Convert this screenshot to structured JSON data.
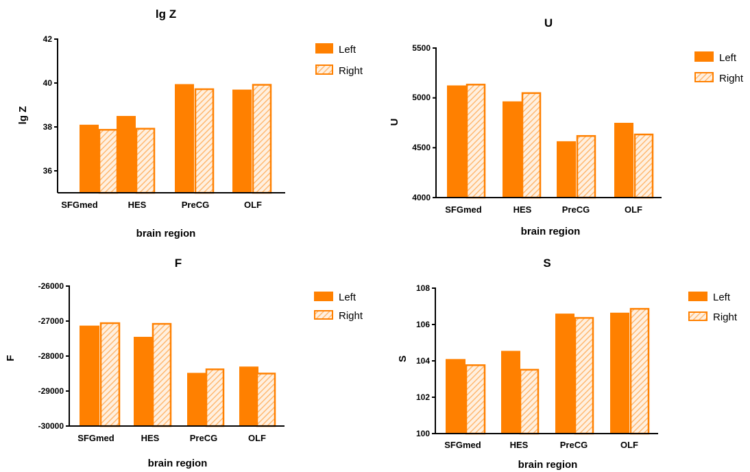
{
  "colors": {
    "left": "#FF8000",
    "right_fill": "#FFF0E0",
    "right_hatch": "#FFB870",
    "right_edge": "#FF8000",
    "axis": "#000000"
  },
  "chart_data": [
    {
      "type": "bar",
      "title": "lg Z",
      "xlabel": "brain region",
      "ylabel": "lg Z",
      "categories": [
        "SFGmed",
        "HES",
        "PreCG",
        "OLF"
      ],
      "ylim": [
        35,
        42
      ],
      "yticks": [
        "36",
        "38",
        "40",
        "42"
      ],
      "legend_position": "top-right",
      "series": [
        {
          "name": "Left",
          "values": [
            38.1,
            38.5,
            39.95,
            39.7
          ]
        },
        {
          "name": "Right",
          "values": [
            37.9,
            37.95,
            39.75,
            39.95
          ]
        }
      ]
    },
    {
      "type": "bar",
      "title": "U",
      "xlabel": "brain region",
      "ylabel": "U",
      "categories": [
        "SFGmed",
        "HES",
        "PreCG",
        "OLF"
      ],
      "ylim": [
        4000,
        5500
      ],
      "yticks": [
        "4000",
        "4500",
        "5000",
        "5500"
      ],
      "legend_position": "top-right",
      "series": [
        {
          "name": "Left",
          "values": [
            5125,
            4965,
            4565,
            4750
          ]
        },
        {
          "name": "Right",
          "values": [
            5140,
            5055,
            4625,
            4640
          ]
        }
      ]
    },
    {
      "type": "bar",
      "title": "F",
      "xlabel": "brain region",
      "ylabel": "F",
      "categories": [
        "SFGmed",
        "HES",
        "PreCG",
        "OLF"
      ],
      "ylim": [
        -30000,
        -26000
      ],
      "yticks": [
        "-30000",
        "-29000",
        "-28000",
        "-27000",
        "-26000"
      ],
      "legend_position": "top-right",
      "series": [
        {
          "name": "Left",
          "values": [
            -27130,
            -27450,
            -28480,
            -28300
          ]
        },
        {
          "name": "Right",
          "values": [
            -27040,
            -27060,
            -28360,
            -28480
          ]
        }
      ]
    },
    {
      "type": "bar",
      "title": "S",
      "xlabel": "brain region",
      "ylabel": "S",
      "categories": [
        "SFGmed",
        "HES",
        "PreCG",
        "OLF"
      ],
      "ylim": [
        100,
        108
      ],
      "yticks": [
        "100",
        "102",
        "104",
        "106",
        "108"
      ],
      "legend_position": "top-right",
      "series": [
        {
          "name": "Left",
          "values": [
            104.1,
            104.55,
            106.6,
            106.65
          ]
        },
        {
          "name": "Right",
          "values": [
            103.8,
            103.55,
            106.4,
            106.9
          ]
        }
      ]
    }
  ]
}
